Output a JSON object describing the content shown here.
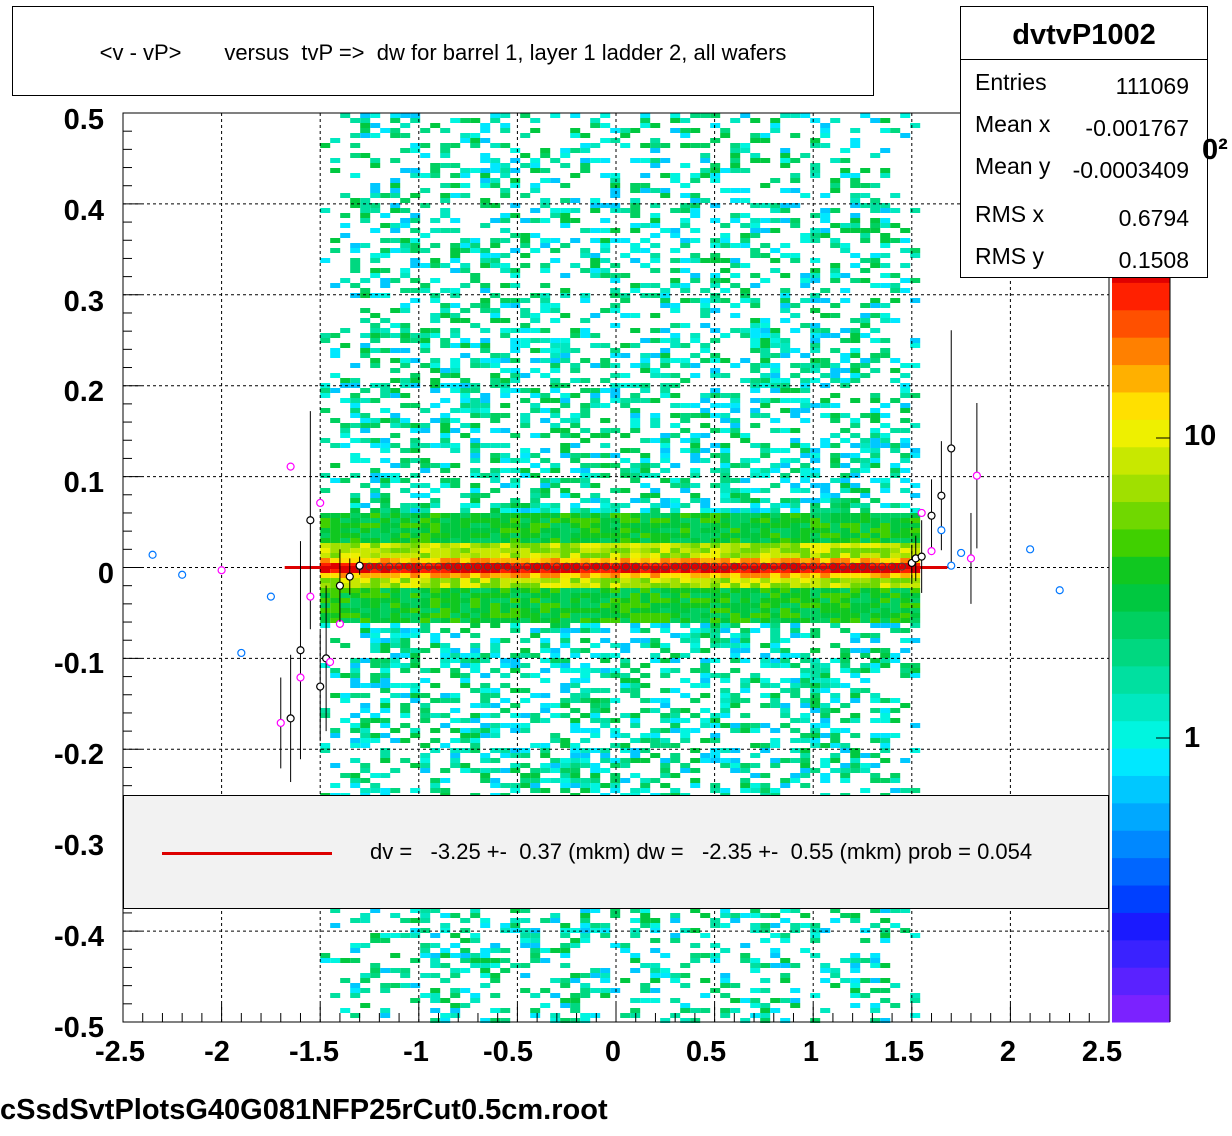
{
  "title": "<v - vP>       versus  tvP =>  dw for barrel 1, layer 1 ladder 2, all wafers",
  "stats": {
    "name": "dvtvP1002",
    "rows": [
      {
        "label": "Entries",
        "value": "111069"
      },
      {
        "label": "Mean x",
        "value": "-0.001767"
      },
      {
        "label": "Mean y",
        "value": "-0.0003409"
      },
      {
        "label": "RMS x",
        "value": "0.6794"
      },
      {
        "label": "RMS y",
        "value": "0.1508"
      }
    ]
  },
  "fit_legend": {
    "text": "dv =   -3.25 +-  0.37 (mkm) dw =   -2.35 +-  0.55 (mkm) prob = 0.054",
    "line_color": "#dd0000"
  },
  "footer": {
    "file": "cSsdSvtPlotsG40G081NFP25rCut0.5cm.root"
  },
  "colorbar": {
    "labels": [
      "10",
      "1"
    ],
    "values": [
      10,
      1
    ],
    "exponent_fragment": "0²",
    "colors": [
      "#7b22ff",
      "#5a22ff",
      "#3a22ff",
      "#1a1aff",
      "#0040ff",
      "#0066ff",
      "#0088ff",
      "#00a8ff",
      "#00c8ff",
      "#00e8ff",
      "#00f5e0",
      "#00e8c0",
      "#00e0a0",
      "#00d880",
      "#00d060",
      "#00c840",
      "#10c820",
      "#40d000",
      "#70d800",
      "#a0e000",
      "#c8e800",
      "#eef000",
      "#ffe000",
      "#ffb000",
      "#ff8000",
      "#ff5000",
      "#ff2000",
      "#e00000"
    ]
  },
  "colors": {
    "hist_core": "#dd0000",
    "hist_halo": "#ffee00",
    "hist_body": "#00dd44",
    "hist_tail": "#00eeff",
    "fit_line": "#dd0000",
    "profile_magenta": "#ff00ff",
    "profile_blue": "#0077ff"
  },
  "chart_data": {
    "type": "heatmap",
    "title": "<v - vP>       versus  tvP =>  dw for barrel 1, layer 1 ladder 2, all wafers",
    "xlabel": "",
    "ylabel": "",
    "xlim": [
      -2.5,
      2.5
    ],
    "ylim": [
      -0.5,
      0.5
    ],
    "x_ticks": [
      -2.5,
      -2,
      -1.5,
      -1,
      -0.5,
      0,
      0.5,
      1,
      1.5,
      2,
      2.5
    ],
    "y_ticks": [
      0.5,
      0.4,
      0.3,
      0.2,
      0.1,
      0,
      -0.1,
      -0.2,
      -0.3,
      -0.4,
      -0.5
    ],
    "x_tick_labels": [
      "-2.5",
      "-2",
      "-1.5",
      "-1",
      "-0.5",
      "0",
      "0.5",
      "1",
      "1.5",
      "2",
      "2.5"
    ],
    "y_tick_labels": [
      "0.5",
      "0.4",
      "0.3",
      "0.2",
      "0.1",
      "0",
      "-0.1",
      "-0.2",
      "-0.3",
      "-0.4",
      "-0.5"
    ],
    "grid": true,
    "z_scale": "log",
    "histogram_x_range": [
      -1.5,
      1.5
    ],
    "dense_band": {
      "y_center": 0.0,
      "width": 0.03
    },
    "fit": {
      "type": "line",
      "x_range": [
        -1.68,
        1.68
      ],
      "y": 0.0
    },
    "profile_points": [
      {
        "x": -2.35,
        "y": 0.014,
        "err": 0.0,
        "kind": "blue"
      },
      {
        "x": -2.2,
        "y": -0.008,
        "err": 0.0,
        "kind": "blue"
      },
      {
        "x": -2.0,
        "y": -0.003,
        "err": 0.0,
        "kind": "magenta"
      },
      {
        "x": -1.9,
        "y": -0.094,
        "err": 0.0,
        "kind": "blue"
      },
      {
        "x": -1.75,
        "y": -0.032,
        "err": 0.0,
        "kind": "blue"
      },
      {
        "x": -1.7,
        "y": -0.171,
        "err": 0.05,
        "kind": "magenta"
      },
      {
        "x": -1.65,
        "y": -0.166,
        "err": 0.07,
        "kind": "black"
      },
      {
        "x": -1.65,
        "y": 0.111,
        "err": 0.0,
        "kind": "magenta"
      },
      {
        "x": -1.6,
        "y": -0.091,
        "err": 0.12,
        "kind": "black"
      },
      {
        "x": -1.6,
        "y": -0.121,
        "err": 0.0,
        "kind": "magenta"
      },
      {
        "x": -1.55,
        "y": 0.052,
        "err": 0.12,
        "kind": "black"
      },
      {
        "x": -1.55,
        "y": -0.032,
        "err": 0.0,
        "kind": "magenta"
      },
      {
        "x": -1.5,
        "y": -0.131,
        "err": 0.06,
        "kind": "black"
      },
      {
        "x": -1.5,
        "y": 0.071,
        "err": 0.0,
        "kind": "magenta"
      },
      {
        "x": -1.47,
        "y": -0.1,
        "err": 0.08,
        "kind": "black"
      },
      {
        "x": -1.45,
        "y": -0.104,
        "err": 0.0,
        "kind": "magenta"
      },
      {
        "x": -1.4,
        "y": -0.062,
        "err": 0.0,
        "kind": "magenta"
      },
      {
        "x": -1.4,
        "y": -0.02,
        "err": 0.04,
        "kind": "black"
      },
      {
        "x": -1.35,
        "y": -0.01,
        "err": 0.02,
        "kind": "black"
      },
      {
        "x": -1.3,
        "y": 0.002,
        "err": 0.01,
        "kind": "black"
      },
      {
        "x": 1.5,
        "y": 0.005,
        "err": 0.02,
        "kind": "black"
      },
      {
        "x": 1.52,
        "y": 0.01,
        "err": 0.025,
        "kind": "black"
      },
      {
        "x": 1.55,
        "y": 0.012,
        "err": 0.04,
        "kind": "black"
      },
      {
        "x": 1.55,
        "y": 0.06,
        "err": 0.0,
        "kind": "magenta"
      },
      {
        "x": 1.6,
        "y": 0.057,
        "err": 0.04,
        "kind": "black"
      },
      {
        "x": 1.6,
        "y": 0.018,
        "err": 0.0,
        "kind": "magenta"
      },
      {
        "x": 1.65,
        "y": 0.079,
        "err": 0.06,
        "kind": "black"
      },
      {
        "x": 1.65,
        "y": 0.041,
        "err": 0.0,
        "kind": "blue"
      },
      {
        "x": 1.7,
        "y": 0.131,
        "err": 0.13,
        "kind": "black"
      },
      {
        "x": 1.7,
        "y": 0.002,
        "err": 0.0,
        "kind": "blue"
      },
      {
        "x": 1.75,
        "y": 0.016,
        "err": 0.0,
        "kind": "blue"
      },
      {
        "x": 1.8,
        "y": 0.01,
        "err": 0.05,
        "kind": "magenta"
      },
      {
        "x": 1.83,
        "y": 0.101,
        "err": 0.08,
        "kind": "magenta"
      },
      {
        "x": 2.1,
        "y": 0.02,
        "err": 0.0,
        "kind": "blue"
      },
      {
        "x": 2.25,
        "y": -0.025,
        "err": 0.0,
        "kind": "blue"
      }
    ]
  }
}
